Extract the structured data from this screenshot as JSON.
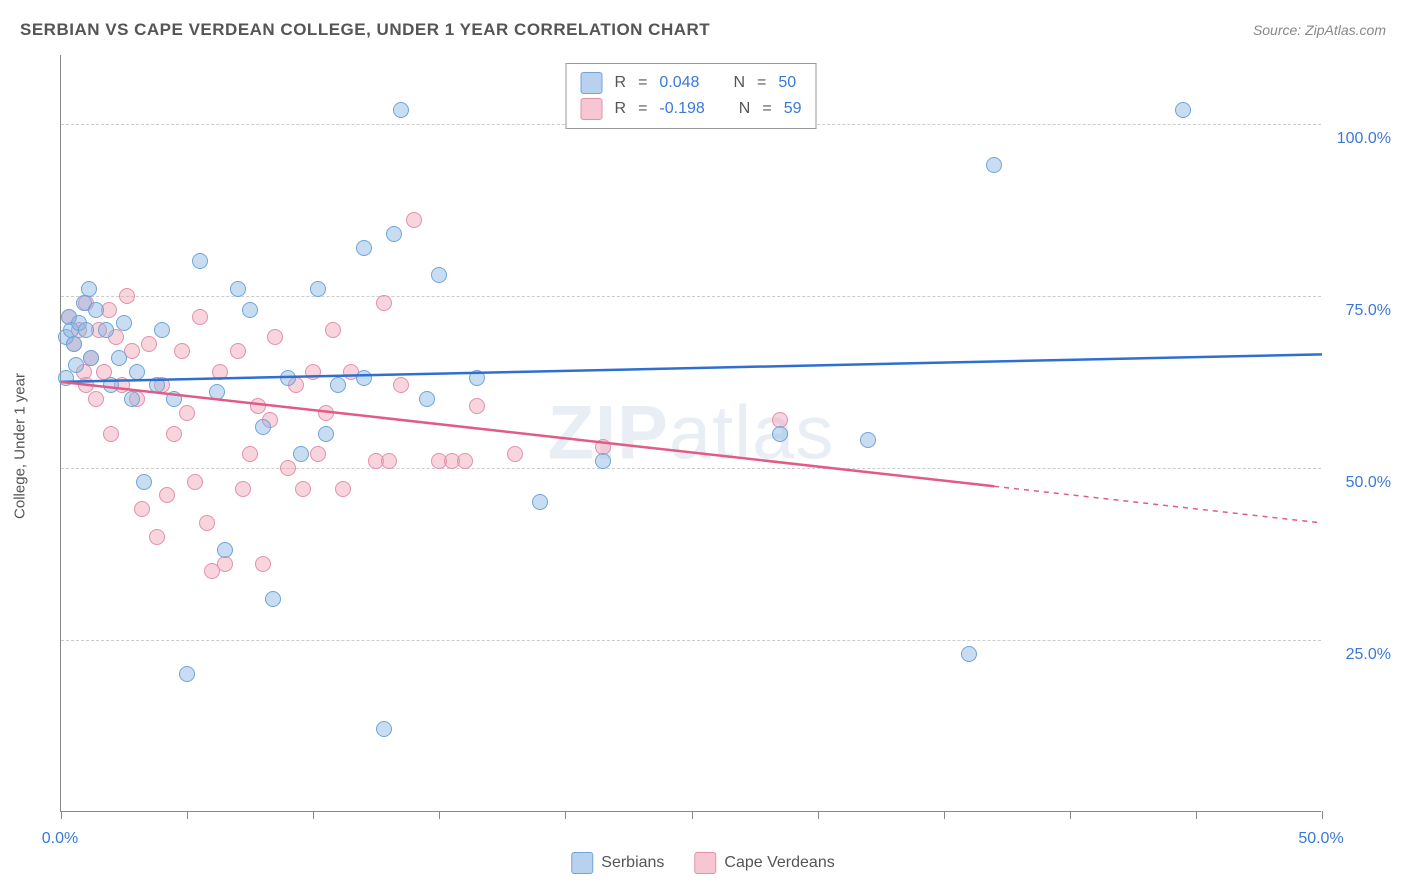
{
  "header": {
    "title": "SERBIAN VS CAPE VERDEAN COLLEGE, UNDER 1 YEAR CORRELATION CHART",
    "source_label": "Source: ",
    "source_name": "ZipAtlas.com"
  },
  "chart": {
    "type": "scatter",
    "ylabel": "College, Under 1 year",
    "watermark_parts": {
      "zip": "ZIP",
      "atlas": "atlas"
    },
    "xlim": [
      0,
      50
    ],
    "ylim": [
      0,
      110
    ],
    "x_ticks": [
      0,
      5,
      10,
      15,
      20,
      25,
      30,
      35,
      40,
      45,
      50
    ],
    "x_tick_labels": {
      "0": "0.0%",
      "50": "50.0%"
    },
    "y_gridlines": [
      25,
      50,
      75,
      100
    ],
    "y_tick_labels": {
      "25": "25.0%",
      "50": "50.0%",
      "75": "75.0%",
      "100": "100.0%"
    },
    "colors": {
      "blue_fill": "rgba(135,179,226,0.45)",
      "blue_stroke": "#6fa5d8",
      "blue_line": "#2f6fd0",
      "pink_fill": "rgba(240,160,180,0.45)",
      "pink_stroke": "#e290ac",
      "pink_line": "#e25b87",
      "grid": "#cccccc",
      "axis": "#888888",
      "text": "#555555",
      "value": "#3a78d8",
      "background": "#ffffff"
    },
    "marker_size": 16,
    "line_width": 2.5,
    "regression": {
      "blue": {
        "y_at_x0": 62.5,
        "y_at_x50": 66.5,
        "solid_until_x": 50
      },
      "pink": {
        "y_at_x0": 62.5,
        "y_at_x50": 42.0,
        "solid_until_x": 37
      }
    },
    "legend_top": {
      "rows": [
        {
          "swatch": "blue",
          "r_label": "R",
          "eq": "=",
          "r_value": "0.048",
          "n_label": "N",
          "n_value": "50"
        },
        {
          "swatch": "pink",
          "r_label": "R",
          "eq": "=",
          "r_value": "-0.198",
          "n_label": "N",
          "n_value": "59"
        }
      ]
    },
    "legend_bottom": {
      "items": [
        {
          "swatch": "blue",
          "label": "Serbians"
        },
        {
          "swatch": "pink",
          "label": "Cape Verdeans"
        }
      ]
    },
    "series": {
      "blue": [
        [
          0.2,
          69
        ],
        [
          0.3,
          72
        ],
        [
          0.4,
          70
        ],
        [
          0.5,
          68
        ],
        [
          0.7,
          71
        ],
        [
          0.9,
          74
        ],
        [
          1.0,
          70
        ],
        [
          1.2,
          66
        ],
        [
          1.4,
          73
        ],
        [
          1.8,
          70
        ],
        [
          2.0,
          62
        ],
        [
          2.3,
          66
        ],
        [
          2.5,
          71
        ],
        [
          2.8,
          60
        ],
        [
          3.0,
          64
        ],
        [
          3.3,
          48
        ],
        [
          3.8,
          62
        ],
        [
          4.0,
          70
        ],
        [
          4.5,
          60
        ],
        [
          5.0,
          20
        ],
        [
          5.5,
          80
        ],
        [
          6.2,
          61
        ],
        [
          6.5,
          38
        ],
        [
          7.0,
          76
        ],
        [
          7.5,
          73
        ],
        [
          8.0,
          56
        ],
        [
          8.4,
          31
        ],
        [
          9.0,
          63
        ],
        [
          9.5,
          52
        ],
        [
          10.2,
          76
        ],
        [
          10.5,
          55
        ],
        [
          11.0,
          62
        ],
        [
          12.0,
          63
        ],
        [
          12.0,
          82
        ],
        [
          12.8,
          12
        ],
        [
          13.2,
          84
        ],
        [
          13.5,
          102
        ],
        [
          14.5,
          60
        ],
        [
          15.0,
          78
        ],
        [
          16.5,
          63
        ],
        [
          19.0,
          45
        ],
        [
          21.5,
          51
        ],
        [
          28.5,
          55
        ],
        [
          32.0,
          54
        ],
        [
          36.0,
          23
        ],
        [
          37.0,
          94
        ],
        [
          44.5,
          102
        ],
        [
          0.2,
          63
        ],
        [
          1.1,
          76
        ],
        [
          0.6,
          65
        ]
      ],
      "pink": [
        [
          0.3,
          72
        ],
        [
          0.5,
          68
        ],
        [
          0.7,
          70
        ],
        [
          0.9,
          64
        ],
        [
          1.0,
          74
        ],
        [
          1.2,
          66
        ],
        [
          1.4,
          60
        ],
        [
          1.5,
          70
        ],
        [
          1.7,
          64
        ],
        [
          1.9,
          73
        ],
        [
          2.0,
          55
        ],
        [
          2.2,
          69
        ],
        [
          2.4,
          62
        ],
        [
          2.6,
          75
        ],
        [
          2.8,
          67
        ],
        [
          3.0,
          60
        ],
        [
          3.2,
          44
        ],
        [
          3.5,
          68
        ],
        [
          3.8,
          40
        ],
        [
          4.0,
          62
        ],
        [
          4.2,
          46
        ],
        [
          4.5,
          55
        ],
        [
          4.8,
          67
        ],
        [
          5.0,
          58
        ],
        [
          5.3,
          48
        ],
        [
          5.5,
          72
        ],
        [
          5.8,
          42
        ],
        [
          6.0,
          35
        ],
        [
          6.3,
          64
        ],
        [
          6.5,
          36
        ],
        [
          7.0,
          67
        ],
        [
          7.2,
          47
        ],
        [
          7.5,
          52
        ],
        [
          7.8,
          59
        ],
        [
          8.0,
          36
        ],
        [
          8.3,
          57
        ],
        [
          8.5,
          69
        ],
        [
          9.0,
          50
        ],
        [
          9.3,
          62
        ],
        [
          9.6,
          47
        ],
        [
          10.0,
          64
        ],
        [
          10.2,
          52
        ],
        [
          10.5,
          58
        ],
        [
          10.8,
          70
        ],
        [
          11.2,
          47
        ],
        [
          11.5,
          64
        ],
        [
          12.5,
          51
        ],
        [
          12.8,
          74
        ],
        [
          13.0,
          51
        ],
        [
          13.5,
          62
        ],
        [
          14.0,
          86
        ],
        [
          15.0,
          51
        ],
        [
          15.5,
          51
        ],
        [
          16.0,
          51
        ],
        [
          16.5,
          59
        ],
        [
          18.0,
          52
        ],
        [
          21.5,
          53
        ],
        [
          28.5,
          57
        ],
        [
          1.0,
          62
        ]
      ]
    }
  }
}
